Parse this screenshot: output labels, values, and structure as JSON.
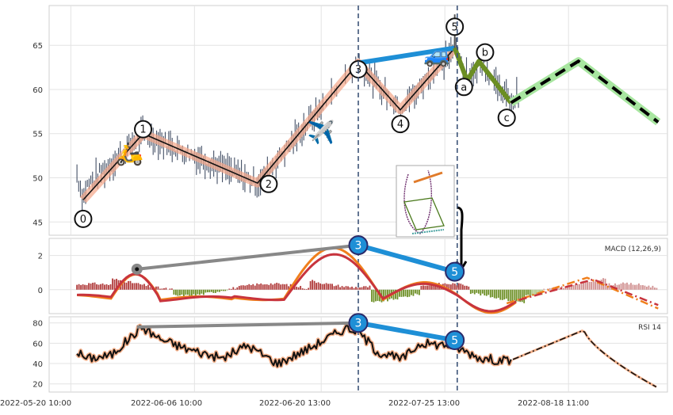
{
  "chart_data": {
    "type": "line",
    "x_ticks": [
      "2022-05-20 10:00",
      "2022-06-06 10:00",
      "2022-06-20 13:00",
      "2022-07-25 13:00",
      "2022-08-18 11:00"
    ],
    "price_panel": {
      "y_ticks": [
        45,
        50,
        55,
        60,
        65
      ],
      "ylim": [
        43.5,
        69.5
      ],
      "wave_points": [
        {
          "label": "0",
          "x": 0.055,
          "y": 47.5
        },
        {
          "label": "1",
          "x": 0.152,
          "y": 55.0
        },
        {
          "label": "2",
          "x": 0.337,
          "y": 49.4
        },
        {
          "label": "3",
          "x": 0.5,
          "y": 63.0
        },
        {
          "label": "4",
          "x": 0.568,
          "y": 57.7
        },
        {
          "label": "5",
          "x": 0.656,
          "y": 64.7
        },
        {
          "label": "a",
          "x": 0.676,
          "y": 61.0
        },
        {
          "label": "b",
          "x": 0.695,
          "y": 63.2
        },
        {
          "label": "c",
          "x": 0.747,
          "y": 58.5
        }
      ],
      "projection": [
        {
          "x": 0.747,
          "y": 58.5
        },
        {
          "x": 0.856,
          "y": 63.2
        },
        {
          "x": 0.985,
          "y": 56.3
        }
      ],
      "channel_top": [
        {
          "x": 0.5,
          "y": 63.0
        },
        {
          "x": 0.656,
          "y": 64.7
        }
      ],
      "icons": [
        "scooter-icon",
        "airplane-icon",
        "car-icon"
      ]
    },
    "macd_panel": {
      "label": "MACD (12,26,9)",
      "y_ticks": [
        2,
        0
      ],
      "ylim": [
        -1.4,
        3.0
      ],
      "divergence_points": [
        {
          "label": "3",
          "x": 0.5,
          "y": 2.6
        },
        {
          "label": "5",
          "x": 0.656,
          "y": 1.05
        }
      ],
      "gray_line": [
        {
          "x": 0.142,
          "y": 1.2
        },
        {
          "x": 0.5,
          "y": 2.6
        }
      ]
    },
    "rsi_panel": {
      "label": "RSI 14",
      "y_ticks": [
        80,
        60,
        40,
        20
      ],
      "ylim": [
        12,
        86
      ],
      "divergence_points": [
        {
          "label": "3",
          "x": 0.5,
          "y": 80
        },
        {
          "label": "5",
          "x": 0.656,
          "y": 63
        }
      ],
      "gray_line": [
        {
          "x": 0.142,
          "y": 76
        },
        {
          "x": 0.5,
          "y": 80
        }
      ]
    },
    "vlines_x": [
      0.5,
      0.66
    ],
    "grid": true
  }
}
